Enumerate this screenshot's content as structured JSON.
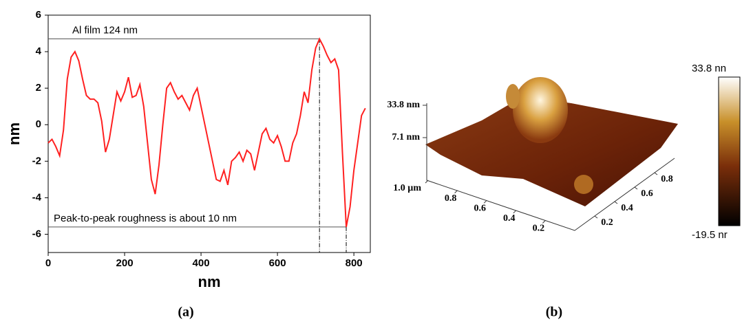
{
  "chart_data": [
    {
      "type": "line",
      "x_label": "nm",
      "y_label": "nm",
      "x": [
        0,
        10,
        20,
        30,
        40,
        50,
        60,
        70,
        80,
        90,
        100,
        110,
        120,
        130,
        140,
        150,
        160,
        170,
        180,
        190,
        200,
        210,
        220,
        230,
        240,
        250,
        260,
        270,
        280,
        290,
        300,
        310,
        320,
        330,
        340,
        350,
        360,
        370,
        380,
        390,
        400,
        410,
        420,
        430,
        440,
        450,
        460,
        470,
        480,
        490,
        500,
        510,
        520,
        530,
        540,
        550,
        560,
        570,
        580,
        590,
        600,
        610,
        620,
        630,
        640,
        650,
        660,
        670,
        680,
        690,
        700,
        710,
        720,
        730,
        740,
        750,
        760,
        770,
        780,
        790,
        800,
        810,
        820,
        830
      ],
      "series": [
        {
          "color": "#ff2020",
          "values": [
            -1.0,
            -0.8,
            -1.2,
            -1.7,
            -0.3,
            2.5,
            3.7,
            4.0,
            3.5,
            2.5,
            1.6,
            1.4,
            1.4,
            1.2,
            0.2,
            -1.5,
            -0.8,
            0.5,
            1.8,
            1.3,
            1.8,
            2.6,
            1.5,
            1.6,
            2.2,
            1.0,
            -1.0,
            -3.0,
            -3.8,
            -2.2,
            0.0,
            2.0,
            2.3,
            1.8,
            1.4,
            1.6,
            1.2,
            0.8,
            1.6,
            2.0,
            1.0,
            0.0,
            -1.0,
            -2.0,
            -3.0,
            -3.1,
            -2.5,
            -3.3,
            -2.0,
            -1.8,
            -1.5,
            -2.0,
            -1.4,
            -1.6,
            -2.5,
            -1.5,
            -0.5,
            -0.2,
            -0.8,
            -1.0,
            -0.6,
            -1.2,
            -2.0,
            -2.0,
            -1.0,
            -0.5,
            0.5,
            1.8,
            1.2,
            3.0,
            4.2,
            4.7,
            4.3,
            3.8,
            3.4,
            3.6,
            3.0,
            -1.5,
            -5.6,
            -4.5,
            -2.5,
            -1.0,
            0.5,
            0.9
          ]
        }
      ],
      "xlim": [
        0,
        843
      ],
      "xticks": [
        0,
        200,
        400,
        600,
        800
      ],
      "ylim": [
        -7,
        6
      ],
      "yticks": [
        -6,
        -4,
        -2,
        0,
        2,
        4,
        6
      ],
      "hlines": [
        {
          "value": 4.7,
          "label": "Al film 124 nm"
        },
        {
          "value": -5.6,
          "label": "Peak-to-peak roughness is about  10 nm"
        }
      ],
      "vlines": [
        710,
        780
      ],
      "panel_label": "(a)"
    },
    {
      "type": "surface",
      "xticks": [
        {
          "value": 1.0,
          "label": "1.0 µm"
        },
        0.8,
        0.6,
        0.4,
        0.2
      ],
      "yticks": [
        0.2,
        0.4,
        0.6,
        0.8
      ],
      "zticks": [
        {
          "value": 33.8,
          "label": "33.8 nm"
        },
        {
          "value": 7.1,
          "label": "7.1 nm"
        }
      ],
      "colorbar_ticks": [
        {
          "value": 33.8,
          "label": "33.8 nn"
        },
        {
          "value": -19.5,
          "label": "-19.5 nr"
        }
      ],
      "panel_label": "(b)"
    }
  ]
}
